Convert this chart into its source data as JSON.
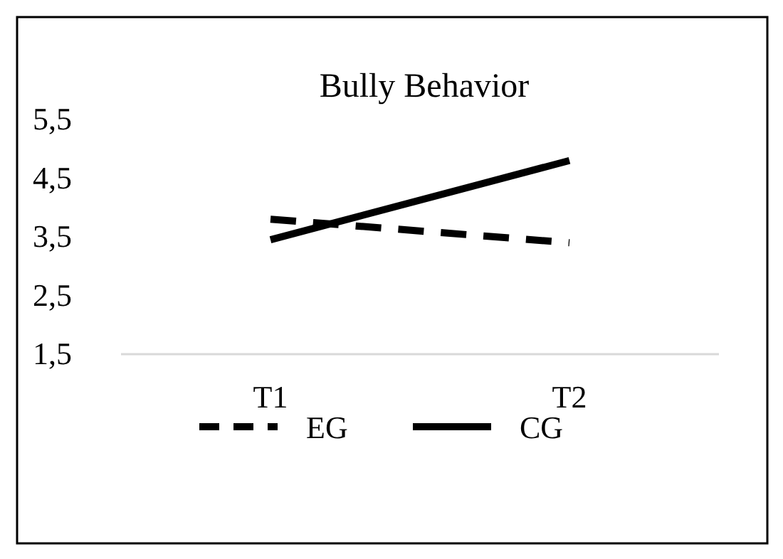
{
  "chart_data": {
    "type": "line",
    "title": "Bully Behavior",
    "categories": [
      "T1",
      "T2"
    ],
    "series": [
      {
        "name": "EG",
        "color": "#000000",
        "values": [
          3.8,
          3.4
        ],
        "line_style": "dashed"
      },
      {
        "name": "CG",
        "color": "#000000",
        "values": [
          3.45,
          4.8
        ],
        "line_style": "solid"
      }
    ],
    "ylim": [
      1.5,
      5.5
    ],
    "yticks": [
      {
        "value": 1.5,
        "label": "1,5"
      },
      {
        "value": 2.5,
        "label": "2,5"
      },
      {
        "value": 3.5,
        "label": "3,5"
      },
      {
        "value": 4.5,
        "label": "4,5"
      },
      {
        "value": 5.5,
        "label": "5,5"
      }
    ],
    "grid": false,
    "legend": "bottom",
    "marker": "none"
  }
}
